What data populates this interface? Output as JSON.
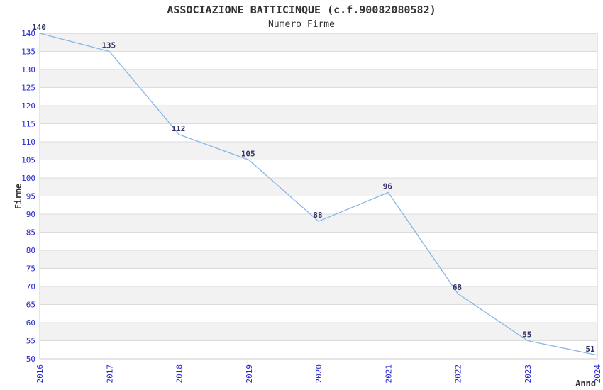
{
  "chart_data": {
    "type": "line",
    "title": "ASSOCIAZIONE BATTICINQUE (c.f.90082080582)",
    "subtitle": "Numero Firme",
    "xlabel": "Anno",
    "ylabel": "Firme",
    "x": [
      "2016",
      "2017",
      "2018",
      "2019",
      "2020",
      "2021",
      "2022",
      "2023",
      "2024"
    ],
    "series": [
      {
        "name": "Numero Firme",
        "values": [
          140,
          135,
          112,
          105,
          88,
          96,
          68,
          55,
          51
        ],
        "color": "#88b5e8"
      }
    ],
    "ylim": [
      50,
      140
    ],
    "ytick_step": 5,
    "grid": true,
    "banded_background": true,
    "legend_position": "none",
    "point_labels_visible": true,
    "colors": {
      "background": "#ffffff",
      "band": "#f2f2f2",
      "gridline": "#dcdcdc",
      "border": "#cccccc",
      "tick_label": "#2323d0",
      "point_label": "#333366",
      "text": "#333333"
    }
  }
}
